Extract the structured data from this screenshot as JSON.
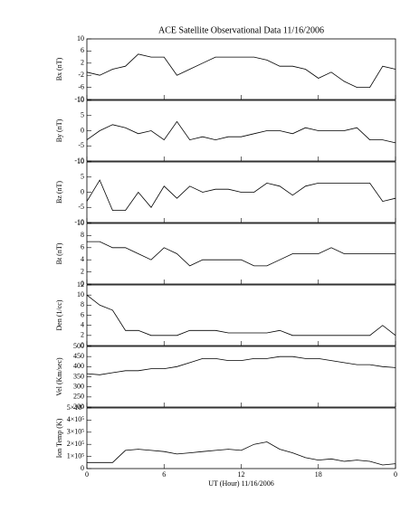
{
  "chart_data": [
    {
      "type": "line",
      "title": "ACE Satellite Observational Data   11/16/2006",
      "ylabel": "Bx (nT)",
      "x": [
        0,
        1,
        2,
        3,
        4,
        5,
        6,
        7,
        8,
        9,
        10,
        11,
        12,
        13,
        14,
        15,
        16,
        17,
        18,
        19,
        20,
        21,
        22,
        23,
        24
      ],
      "series": [
        {
          "name": "Bx",
          "color": "#000000",
          "values": [
            -1,
            -2,
            0,
            1,
            5,
            4,
            4,
            -2,
            0,
            2,
            4,
            4,
            4,
            4,
            3,
            1,
            1,
            0,
            -3,
            -1,
            -4,
            -6,
            -6,
            1,
            0
          ]
        }
      ],
      "xlim": [
        0,
        24
      ],
      "xticks": [
        0,
        6,
        12,
        18,
        {
          "value": 24,
          "label": "0"
        }
      ],
      "ylim": [
        -10,
        10
      ],
      "yticks": [
        -10,
        -6,
        -2,
        2,
        6,
        10
      ]
    },
    {
      "type": "line",
      "ylabel": "By (nT)",
      "x": [
        0,
        1,
        2,
        3,
        4,
        5,
        6,
        7,
        8,
        9,
        10,
        11,
        12,
        13,
        14,
        15,
        16,
        17,
        18,
        19,
        20,
        21,
        22,
        23,
        24
      ],
      "series": [
        {
          "name": "By",
          "color": "#000000",
          "values": [
            -3,
            0,
            2,
            1,
            -1,
            0,
            -3,
            3,
            -3,
            -2,
            -3,
            -2,
            -2,
            -1,
            0,
            0,
            -1,
            1,
            0,
            0,
            0,
            1,
            -3,
            -3,
            -4
          ]
        }
      ],
      "xlim": [
        0,
        24
      ],
      "xticks": [
        0,
        6,
        12,
        18,
        {
          "value": 24,
          "label": "0"
        }
      ],
      "ylim": [
        -10,
        10
      ],
      "yticks": [
        -10,
        -5,
        0,
        5,
        10
      ]
    },
    {
      "type": "line",
      "ylabel": "Bz (nT)",
      "x": [
        0,
        1,
        2,
        3,
        4,
        5,
        6,
        7,
        8,
        9,
        10,
        11,
        12,
        13,
        14,
        15,
        16,
        17,
        18,
        19,
        20,
        21,
        22,
        23,
        24
      ],
      "series": [
        {
          "name": "Bz",
          "color": "#000000",
          "values": [
            -3,
            4,
            -6,
            -6,
            0,
            -5,
            2,
            -2,
            2,
            0,
            1,
            1,
            0,
            0,
            3,
            2,
            -1,
            2,
            3,
            3,
            3,
            3,
            3,
            -3,
            -2
          ]
        }
      ],
      "xlim": [
        0,
        24
      ],
      "xticks": [
        0,
        6,
        12,
        18,
        {
          "value": 24,
          "label": "0"
        }
      ],
      "ylim": [
        -10,
        10
      ],
      "yticks": [
        -10,
        -5,
        0,
        5,
        10
      ]
    },
    {
      "type": "line",
      "ylabel": "Bt (nT)",
      "x": [
        0,
        1,
        2,
        3,
        4,
        5,
        6,
        7,
        8,
        9,
        10,
        11,
        12,
        13,
        14,
        15,
        16,
        17,
        18,
        19,
        20,
        21,
        22,
        23,
        24
      ],
      "series": [
        {
          "name": "Bt",
          "color": "#000000",
          "values": [
            7,
            7,
            6,
            6,
            5,
            4,
            6,
            5,
            3,
            4,
            4,
            4,
            4,
            3,
            3,
            4,
            5,
            5,
            5,
            6,
            5,
            5,
            5,
            5,
            5
          ]
        }
      ],
      "xlim": [
        0,
        24
      ],
      "xticks": [
        0,
        6,
        12,
        18,
        {
          "value": 24,
          "label": "0"
        }
      ],
      "ylim": [
        0,
        10
      ],
      "yticks": [
        0,
        2,
        4,
        6,
        8,
        10
      ]
    },
    {
      "type": "line",
      "ylabel": "Den (1/cc)",
      "x": [
        0,
        1,
        2,
        3,
        4,
        5,
        6,
        7,
        8,
        9,
        10,
        11,
        12,
        13,
        14,
        15,
        16,
        17,
        18,
        19,
        20,
        21,
        22,
        23,
        24
      ],
      "series": [
        {
          "name": "Den",
          "color": "#000000",
          "values": [
            10,
            8,
            7,
            3,
            3,
            2,
            2,
            2,
            3,
            3,
            3,
            2.5,
            2.5,
            2.5,
            2.5,
            3,
            2,
            2,
            2,
            2,
            2,
            2,
            2,
            4,
            2
          ]
        }
      ],
      "xlim": [
        0,
        24
      ],
      "xticks": [
        0,
        6,
        12,
        18,
        {
          "value": 24,
          "label": "0"
        }
      ],
      "ylim": [
        0,
        12
      ],
      "yticks": [
        0,
        2,
        4,
        6,
        8,
        10,
        12
      ]
    },
    {
      "type": "line",
      "ylabel": "Vel (Km/sec)",
      "x": [
        0,
        1,
        2,
        3,
        4,
        5,
        6,
        7,
        8,
        9,
        10,
        11,
        12,
        13,
        14,
        15,
        16,
        17,
        18,
        19,
        20,
        21,
        22,
        23,
        24
      ],
      "series": [
        {
          "name": "Vel",
          "color": "#000000",
          "values": [
            365,
            360,
            370,
            380,
            380,
            390,
            390,
            400,
            420,
            440,
            440,
            430,
            430,
            440,
            440,
            450,
            450,
            440,
            440,
            430,
            420,
            410,
            410,
            400,
            395
          ]
        }
      ],
      "xlim": [
        0,
        24
      ],
      "xticks": [
        0,
        6,
        12,
        18,
        {
          "value": 24,
          "label": "0"
        }
      ],
      "ylim": [
        200,
        500
      ],
      "yticks": [
        200,
        250,
        300,
        350,
        400,
        450,
        500
      ]
    },
    {
      "type": "line",
      "ylabel": "Ion Temp (K)",
      "xlabel": "UT (Hour)   11/16/2006",
      "x": [
        0,
        1,
        2,
        3,
        4,
        5,
        6,
        7,
        8,
        9,
        10,
        11,
        12,
        13,
        14,
        15,
        16,
        17,
        18,
        19,
        20,
        21,
        22,
        23,
        24
      ],
      "series": [
        {
          "name": "Ion Temp",
          "color": "#000000",
          "values": [
            50000,
            50000,
            50000,
            150000,
            160000,
            150000,
            140000,
            120000,
            130000,
            140000,
            150000,
            160000,
            150000,
            200000,
            220000,
            160000,
            130000,
            90000,
            70000,
            80000,
            60000,
            70000,
            60000,
            30000,
            40000
          ]
        }
      ],
      "xlim": [
        0,
        24
      ],
      "xticks": [
        0,
        6,
        12,
        18,
        {
          "value": 24,
          "label": "0"
        }
      ],
      "ylim": [
        0,
        500000
      ],
      "yticks": [
        0,
        {
          "value": 100000,
          "label": "1×10⁵"
        },
        {
          "value": 200000,
          "label": "2×10⁵"
        },
        {
          "value": 300000,
          "label": "3×10⁵"
        },
        {
          "value": 400000,
          "label": "4×10⁵"
        },
        {
          "value": 500000,
          "label": "5×10⁵"
        }
      ]
    }
  ]
}
